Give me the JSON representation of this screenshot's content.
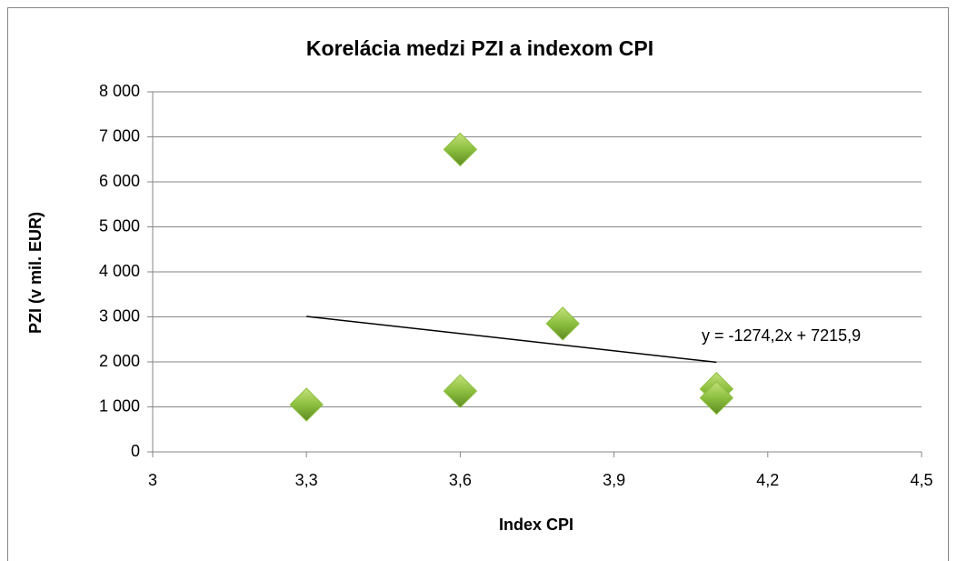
{
  "chart_data": {
    "type": "scatter",
    "title": "Korelácia medzi PZI a indexom CPI",
    "x_label": "Index CPI",
    "y_label": "PZI (v mil. EUR)",
    "x": [
      3.3,
      3.6,
      3.6,
      3.8,
      4.1,
      4.1
    ],
    "values": [
      1050,
      6720,
      1350,
      2850,
      1400,
      1200
    ],
    "color": "#8cbf3f",
    "xlim": [
      3,
      4.5
    ],
    "xticks": [
      3,
      {
        "value": 3.3,
        "label": "3,3"
      },
      {
        "value": 3.6,
        "label": "3,6"
      },
      {
        "value": 3.9,
        "label": "3,9"
      },
      {
        "value": 4.2,
        "label": "4,2"
      },
      {
        "value": 4.5,
        "label": "4,5"
      }
    ],
    "ylim": [
      0,
      8000
    ],
    "yticks": [
      0,
      {
        "value": 1000,
        "label": "1 000"
      },
      {
        "value": 2000,
        "label": "2 000"
      },
      {
        "value": 3000,
        "label": "3 000"
      },
      {
        "value": 4000,
        "label": "4 000"
      },
      {
        "value": 5000,
        "label": "5 000"
      },
      {
        "value": 6000,
        "label": "6 000"
      },
      {
        "value": 7000,
        "label": "7 000"
      },
      {
        "value": 8000,
        "label": "8 000"
      }
    ],
    "grid": true,
    "trendline": {
      "slope": -1274.2,
      "intercept": 7215.9,
      "label": "y = -1274,2x + 7215,9"
    }
  }
}
